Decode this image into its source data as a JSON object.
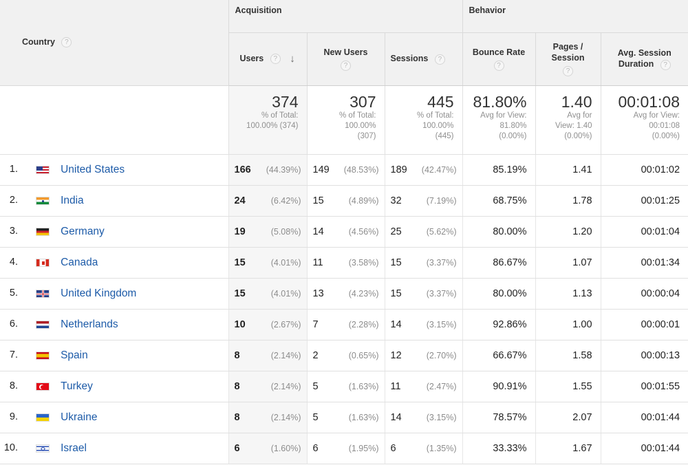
{
  "header": {
    "country_label": "Country",
    "acquisition_label": "Acquisition",
    "behavior_label": "Behavior",
    "help_glyph": "?",
    "sort_glyph": "↓",
    "columns": {
      "users": "Users",
      "new_users": "New Users",
      "sessions": "Sessions",
      "bounce_rate": "Bounce Rate",
      "pages_session_1": "Pages /",
      "pages_session_2": "Session",
      "avg_duration_1": "Avg. Session",
      "avg_duration_2": "Duration"
    }
  },
  "totals": {
    "users": {
      "value": "374",
      "sub1": "% of Total:",
      "sub2": "100.00% (374)",
      "sub3": ""
    },
    "new_users": {
      "value": "307",
      "sub1": "% of Total:",
      "sub2": "100.00%",
      "sub3": "(307)"
    },
    "sessions": {
      "value": "445",
      "sub1": "% of Total:",
      "sub2": "100.00%",
      "sub3": "(445)"
    },
    "bounce_rate": {
      "value": "81.80%",
      "sub1": "Avg for View:",
      "sub2": "81.80%",
      "sub3": "(0.00%)"
    },
    "pages_session": {
      "value": "1.40",
      "sub1": "Avg for",
      "sub2": "View: 1.40",
      "sub3": "(0.00%)"
    },
    "avg_duration": {
      "value": "00:01:08",
      "sub1": "Avg for View:",
      "sub2": "00:01:08",
      "sub3": "(0.00%)"
    }
  },
  "rows": [
    {
      "rank": "1.",
      "country": "United States",
      "flag": "us-flag-icon",
      "users": "166",
      "users_pct": "(44.39%)",
      "new_users": "149",
      "new_users_pct": "(48.53%)",
      "sessions": "189",
      "sessions_pct": "(42.47%)",
      "bounce_rate": "85.19%",
      "pages_session": "1.41",
      "avg_duration": "00:01:02"
    },
    {
      "rank": "2.",
      "country": "India",
      "flag": "in-flag-icon",
      "users": "24",
      "users_pct": "(6.42%)",
      "new_users": "15",
      "new_users_pct": "(4.89%)",
      "sessions": "32",
      "sessions_pct": "(7.19%)",
      "bounce_rate": "68.75%",
      "pages_session": "1.78",
      "avg_duration": "00:01:25"
    },
    {
      "rank": "3.",
      "country": "Germany",
      "flag": "de-flag-icon",
      "users": "19",
      "users_pct": "(5.08%)",
      "new_users": "14",
      "new_users_pct": "(4.56%)",
      "sessions": "25",
      "sessions_pct": "(5.62%)",
      "bounce_rate": "80.00%",
      "pages_session": "1.20",
      "avg_duration": "00:01:04"
    },
    {
      "rank": "4.",
      "country": "Canada",
      "flag": "ca-flag-icon",
      "users": "15",
      "users_pct": "(4.01%)",
      "new_users": "11",
      "new_users_pct": "(3.58%)",
      "sessions": "15",
      "sessions_pct": "(3.37%)",
      "bounce_rate": "86.67%",
      "pages_session": "1.07",
      "avg_duration": "00:01:34"
    },
    {
      "rank": "5.",
      "country": "United Kingdom",
      "flag": "gb-flag-icon",
      "users": "15",
      "users_pct": "(4.01%)",
      "new_users": "13",
      "new_users_pct": "(4.23%)",
      "sessions": "15",
      "sessions_pct": "(3.37%)",
      "bounce_rate": "80.00%",
      "pages_session": "1.13",
      "avg_duration": "00:00:04"
    },
    {
      "rank": "6.",
      "country": "Netherlands",
      "flag": "nl-flag-icon",
      "users": "10",
      "users_pct": "(2.67%)",
      "new_users": "7",
      "new_users_pct": "(2.28%)",
      "sessions": "14",
      "sessions_pct": "(3.15%)",
      "bounce_rate": "92.86%",
      "pages_session": "1.00",
      "avg_duration": "00:00:01"
    },
    {
      "rank": "7.",
      "country": "Spain",
      "flag": "es-flag-icon",
      "users": "8",
      "users_pct": "(2.14%)",
      "new_users": "2",
      "new_users_pct": "(0.65%)",
      "sessions": "12",
      "sessions_pct": "(2.70%)",
      "bounce_rate": "66.67%",
      "pages_session": "1.58",
      "avg_duration": "00:00:13"
    },
    {
      "rank": "8.",
      "country": "Turkey",
      "flag": "tr-flag-icon",
      "users": "8",
      "users_pct": "(2.14%)",
      "new_users": "5",
      "new_users_pct": "(1.63%)",
      "sessions": "11",
      "sessions_pct": "(2.47%)",
      "bounce_rate": "90.91%",
      "pages_session": "1.55",
      "avg_duration": "00:01:55"
    },
    {
      "rank": "9.",
      "country": "Ukraine",
      "flag": "ua-flag-icon",
      "users": "8",
      "users_pct": "(2.14%)",
      "new_users": "5",
      "new_users_pct": "(1.63%)",
      "sessions": "14",
      "sessions_pct": "(3.15%)",
      "bounce_rate": "78.57%",
      "pages_session": "2.07",
      "avg_duration": "00:01:44"
    },
    {
      "rank": "10.",
      "country": "Israel",
      "flag": "il-flag-icon",
      "users": "6",
      "users_pct": "(1.60%)",
      "new_users": "6",
      "new_users_pct": "(1.95%)",
      "sessions": "6",
      "sessions_pct": "(1.35%)",
      "bounce_rate": "33.33%",
      "pages_session": "1.67",
      "avg_duration": "00:01:44"
    }
  ],
  "colors": {
    "link": "#1d5ba8",
    "header_bg": "#f1f1f1",
    "muted_text": "#8c8c8c"
  }
}
